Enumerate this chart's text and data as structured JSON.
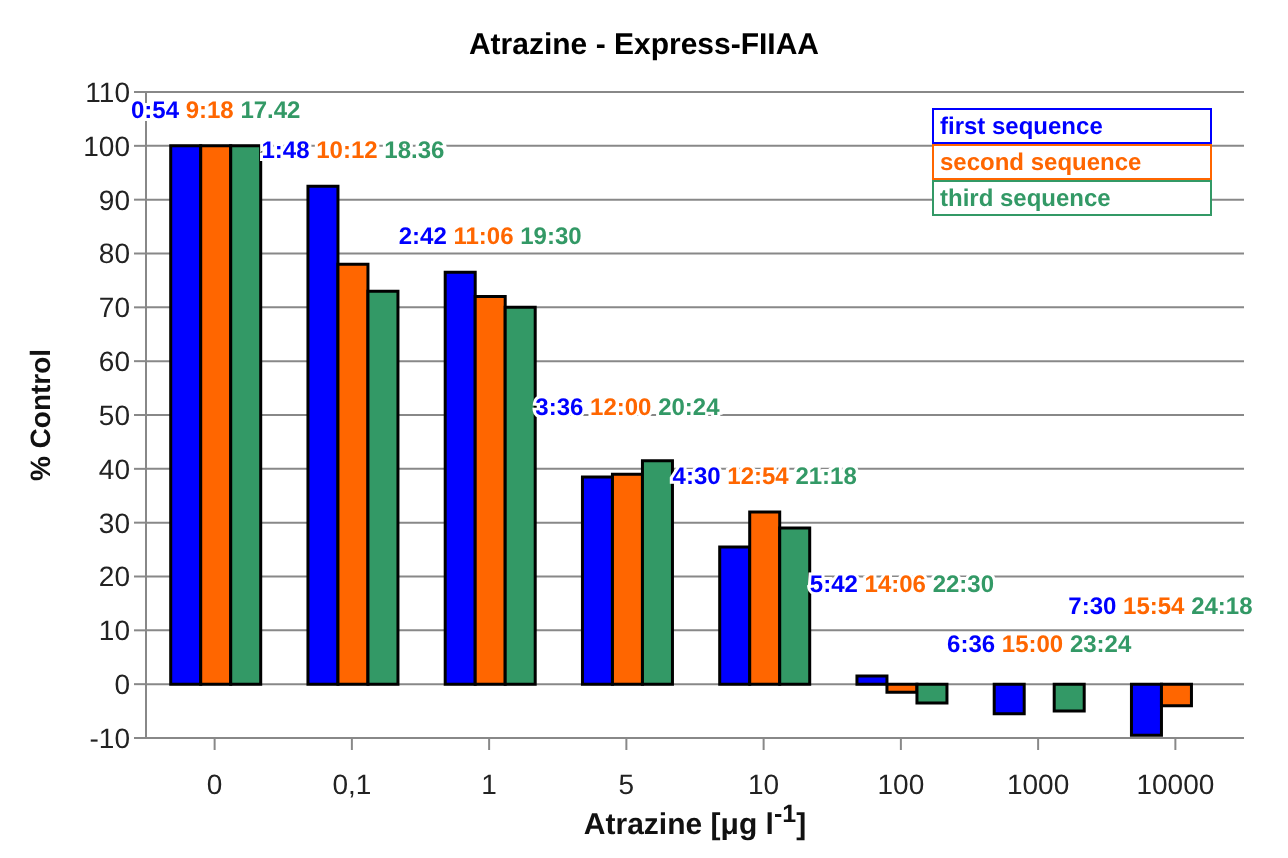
{
  "chart_data": {
    "type": "bar",
    "title": "Atrazine - Express-FIIAA",
    "xlabel": "Atrazine [μg l$^{-1}$]",
    "ylabel": "% Control",
    "categories": [
      "0",
      "0,1",
      "1",
      "5",
      "10",
      "100",
      "1000",
      "10000"
    ],
    "series": [
      {
        "name": "first sequence",
        "color": "#0000ff",
        "values": [
          100,
          92.5,
          76.5,
          38.5,
          25.5,
          1.5,
          -5.5,
          -9.5
        ]
      },
      {
        "name": "second sequence",
        "color": "#ff6600",
        "values": [
          100,
          78,
          72,
          39,
          32,
          -1.5,
          null,
          -4
        ]
      },
      {
        "name": "third sequence",
        "color": "#339966",
        "values": [
          100,
          73,
          70,
          41.5,
          29,
          -3.5,
          -5,
          null
        ]
      }
    ],
    "annotations": [
      "0:54 9:18 17.42",
      "1:48 10:12 18.36",
      "2:42 11:06 19:30",
      "3:36 12:00 20:24",
      "4:30 12:54 21:18",
      "5:42 14:06 22:30",
      "6:36 15:00 23:24",
      "7:30 15:54 24:18"
    ],
    "ylim": [
      -10,
      110
    ],
    "yticks": [
      -10,
      0,
      10,
      20,
      30,
      40,
      50,
      60,
      70,
      80,
      90,
      100,
      110
    ],
    "grid": "y"
  }
}
